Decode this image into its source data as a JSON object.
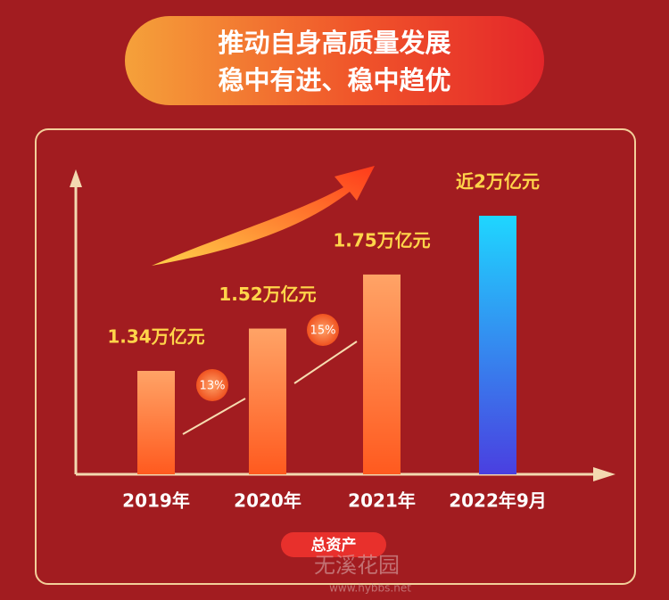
{
  "chart_data": {
    "type": "bar",
    "title": "推动自身高质量发展",
    "subtitle": "稳中有进、稳中趋优",
    "categories": [
      "2019年",
      "2020年",
      "2021年",
      "2022年9月"
    ],
    "values": [
      1.34,
      1.52,
      1.75,
      2
    ],
    "value_labels": [
      "1.34万亿元",
      "1.52万亿元",
      "1.75万亿元",
      "近2万亿元"
    ],
    "colors": [
      "#ff7a30",
      "#ff7a30",
      "#ff7a30",
      "#3b5be6"
    ],
    "growth_labels": [
      "13%",
      "15%"
    ],
    "xlabel": "总资产",
    "watermark": [
      "无溪花园",
      "www.hybbs.net"
    ]
  }
}
